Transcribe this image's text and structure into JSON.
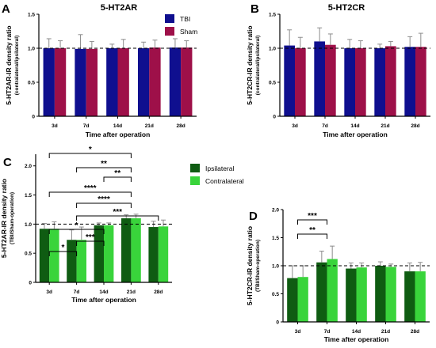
{
  "panel_letters": [
    "A",
    "B",
    "C",
    "D"
  ],
  "colors": {
    "tbi": "#0f0f8f",
    "sham": "#9e1049",
    "ipsilateral": "#0f5c12",
    "contralateral": "#39d43b",
    "error_bar": "#8c8c8c"
  },
  "chart_data": [
    {
      "panel": "A",
      "type": "bar",
      "title": "5-HT2AR",
      "xlabel": "Time after operation",
      "ylabel": "5-HT2AR-IR density ratio",
      "ylabel_sub": "(contralateral/ipsilateral)",
      "categories": [
        "3d",
        "7d",
        "14d",
        "21d",
        "28d"
      ],
      "ylim": [
        0,
        1.5
      ],
      "reference_line": 1.0,
      "legend": {
        "placement": "top-right"
      },
      "series": [
        {
          "name": "TBI",
          "values": [
            1.0,
            0.99,
            1.0,
            1.0,
            1.01
          ],
          "errors": [
            0.14,
            0.21,
            0.06,
            0.09,
            0.13
          ]
        },
        {
          "name": "Sham",
          "values": [
            1.0,
            0.99,
            1.0,
            1.01,
            1.01
          ],
          "errors": [
            0.11,
            0.11,
            0.13,
            0.11,
            0.1
          ]
        }
      ],
      "significance": []
    },
    {
      "panel": "B",
      "type": "bar",
      "title": "5-HT2CR",
      "xlabel": "Time after operation",
      "ylabel": "5-HT2CR-IR density ratio",
      "ylabel_sub": "(contralateral/ipsilateral)",
      "categories": [
        "3d",
        "7d",
        "14d",
        "21d",
        "28d"
      ],
      "ylim": [
        0,
        1.5
      ],
      "reference_line": 1.0,
      "series": [
        {
          "name": "TBI",
          "values": [
            1.04,
            1.1,
            1.0,
            1.0,
            1.02
          ],
          "errors": [
            0.23,
            0.2,
            0.13,
            0.06,
            0.15
          ]
        },
        {
          "name": "Sham",
          "values": [
            1.0,
            1.05,
            1.0,
            1.03,
            1.02
          ],
          "errors": [
            0.16,
            0.16,
            0.11,
            0.07,
            0.2
          ]
        }
      ],
      "significance": []
    },
    {
      "panel": "C",
      "type": "bar",
      "xlabel": "Time after operation",
      "ylabel": "5-HT2AR-IR density ratio",
      "ylabel_sub": "(TBI/Sham-operation)",
      "categories": [
        "3d",
        "7d",
        "14d",
        "21d",
        "28d"
      ],
      "ylim": [
        0,
        2.2
      ],
      "reference_line": 1.0,
      "legend": {
        "placement": "top-right"
      },
      "series": [
        {
          "name": "Ipsilateral",
          "values": [
            0.92,
            0.73,
            0.98,
            1.1,
            0.95
          ],
          "errors": [
            0.09,
            0.17,
            0.04,
            0.06,
            0.1
          ]
        },
        {
          "name": "Contralateral",
          "values": [
            0.92,
            0.73,
            0.98,
            1.1,
            0.96
          ],
          "errors": [
            0.12,
            0.22,
            0.04,
            0.07,
            0.11
          ]
        }
      ],
      "significance": [
        {
          "from": "3d",
          "to": "7d",
          "label": "*"
        },
        {
          "from": "7d",
          "to": "14d",
          "label": "***"
        },
        {
          "from": "3d",
          "to": "14d",
          "label": "*"
        },
        {
          "from": "7d",
          "to": "28d",
          "label": "***"
        },
        {
          "from": "7d",
          "to": "21d",
          "label": "****"
        },
        {
          "from": "3d",
          "to": "21d",
          "label": "****"
        },
        {
          "from": "14d",
          "to": "21d",
          "label": "**"
        },
        {
          "from": "7d",
          "to": "21d",
          "label": "**"
        },
        {
          "from": "3d",
          "to": "21d",
          "label": "*"
        }
      ]
    },
    {
      "panel": "D",
      "type": "bar",
      "xlabel": "Time after operation",
      "ylabel": "5-HT2CR-IR density ratio",
      "ylabel_sub": "(TBI/Sham-operation)",
      "categories": [
        "3d",
        "7d",
        "14d",
        "21d",
        "28d"
      ],
      "ylim": [
        0,
        2.0
      ],
      "reference_line": 1.0,
      "series": [
        {
          "name": "Ipsilateral",
          "values": [
            0.78,
            1.06,
            0.95,
            1.0,
            0.9
          ],
          "errors": [
            0.22,
            0.2,
            0.1,
            0.07,
            0.15
          ]
        },
        {
          "name": "Contralateral",
          "values": [
            0.8,
            1.12,
            0.97,
            0.98,
            0.9
          ],
          "errors": [
            0.2,
            0.23,
            0.08,
            0.05,
            0.16
          ]
        }
      ],
      "significance": [
        {
          "from": "3d",
          "to": "7d",
          "label": "**"
        },
        {
          "from": "3d",
          "to": "7d",
          "label": "***"
        }
      ]
    }
  ]
}
